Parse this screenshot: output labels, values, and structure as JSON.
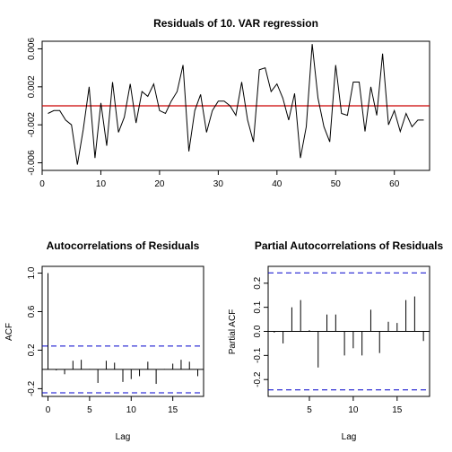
{
  "chart_data": [
    {
      "type": "line",
      "title": "Residuals of 10. VAR regression",
      "xlabel": "",
      "ylabel": "",
      "xlim": [
        0,
        66
      ],
      "ylim": [
        -0.0068,
        0.0068
      ],
      "xticks": [
        0,
        10,
        20,
        30,
        40,
        50,
        60
      ],
      "yticks": [
        -0.006,
        -0.002,
        0.002,
        0.006
      ],
      "ytick_labels": [
        "-0.006",
        "-0.002",
        "0.002",
        "0.006"
      ],
      "hline": {
        "y": 0,
        "color": "#cc0000"
      },
      "series_color": "#000000",
      "x": [
        1,
        2,
        3,
        4,
        5,
        6,
        7,
        8,
        9,
        10,
        11,
        12,
        13,
        14,
        15,
        16,
        17,
        18,
        19,
        20,
        21,
        22,
        23,
        24,
        25,
        26,
        27,
        28,
        29,
        30,
        31,
        32,
        33,
        34,
        35,
        36,
        37,
        38,
        39,
        40,
        41,
        42,
        43,
        44,
        45,
        46,
        47,
        48,
        49,
        50,
        51,
        52,
        53,
        54,
        55,
        56,
        57,
        58,
        59,
        60,
        61,
        62,
        63,
        64,
        65
      ],
      "values": [
        -0.0008,
        -0.0005,
        -0.0005,
        -0.0015,
        -0.002,
        -0.0062,
        -0.0025,
        0.002,
        -0.0055,
        0.0003,
        -0.0042,
        0.0025,
        -0.0028,
        -0.0012,
        0.0023,
        -0.0018,
        0.0015,
        0.001,
        0.0023,
        -0.0005,
        -0.0008,
        0.0005,
        0.0015,
        0.0043,
        -0.0048,
        -0.0005,
        0.0012,
        -0.0028,
        -0.0005,
        0.0005,
        0.0005,
        0.0,
        -0.001,
        0.0025,
        -0.0015,
        -0.0038,
        0.0038,
        0.004,
        0.0015,
        0.0023,
        0.0008,
        -0.0015,
        0.0013,
        -0.0055,
        -0.0022,
        0.0065,
        0.0008,
        -0.0022,
        -0.0038,
        0.0043,
        -0.0008,
        -0.001,
        0.0025,
        0.0025,
        -0.0027,
        0.002,
        -0.001,
        0.0055,
        -0.002,
        -0.0005,
        -0.0027,
        -0.0008,
        -0.0022,
        -0.0015,
        -0.0015
      ]
    },
    {
      "type": "bar",
      "title": "Autocorrelations of Residuals",
      "xlabel": "Lag",
      "ylabel": "ACF",
      "xlim": [
        -0.7,
        18.7
      ],
      "ylim": [
        -0.28,
        1.07
      ],
      "xticks": [
        0,
        5,
        10,
        15
      ],
      "yticks": [
        -0.2,
        0.2,
        0.6,
        1.0
      ],
      "ytick_labels": [
        "-0.2",
        "0.2",
        "0.6",
        "1.0"
      ],
      "conf_bound": 0.243,
      "lags": [
        0,
        1,
        2,
        3,
        4,
        5,
        6,
        7,
        8,
        9,
        10,
        11,
        12,
        13,
        14,
        15,
        16,
        17,
        18
      ],
      "values": [
        1.0,
        -0.01,
        -0.05,
        0.09,
        0.1,
        0.005,
        -0.14,
        0.09,
        0.07,
        -0.13,
        -0.1,
        -0.07,
        0.08,
        -0.15,
        0.005,
        0.06,
        0.1,
        0.08,
        -0.07
      ]
    },
    {
      "type": "bar",
      "title": "Partial Autocorrelations of Residuals",
      "xlabel": "Lag",
      "ylabel": "Partial ACF",
      "xlim": [
        0.3,
        18.7
      ],
      "ylim": [
        -0.27,
        0.27
      ],
      "xticks": [
        5,
        10,
        15
      ],
      "yticks": [
        -0.2,
        -0.1,
        0.0,
        0.1,
        0.2
      ],
      "ytick_labels": [
        "-0.2",
        "-0.1",
        "0.0",
        "0.1",
        "0.2"
      ],
      "conf_bound": 0.243,
      "lags": [
        1,
        2,
        3,
        4,
        5,
        6,
        7,
        8,
        9,
        10,
        11,
        12,
        13,
        14,
        15,
        16,
        17,
        18
      ],
      "values": [
        -0.005,
        -0.05,
        0.1,
        0.13,
        0.005,
        -0.15,
        0.07,
        0.07,
        -0.1,
        -0.07,
        -0.1,
        0.09,
        -0.09,
        0.04,
        0.035,
        0.13,
        0.145,
        -0.04
      ]
    }
  ]
}
